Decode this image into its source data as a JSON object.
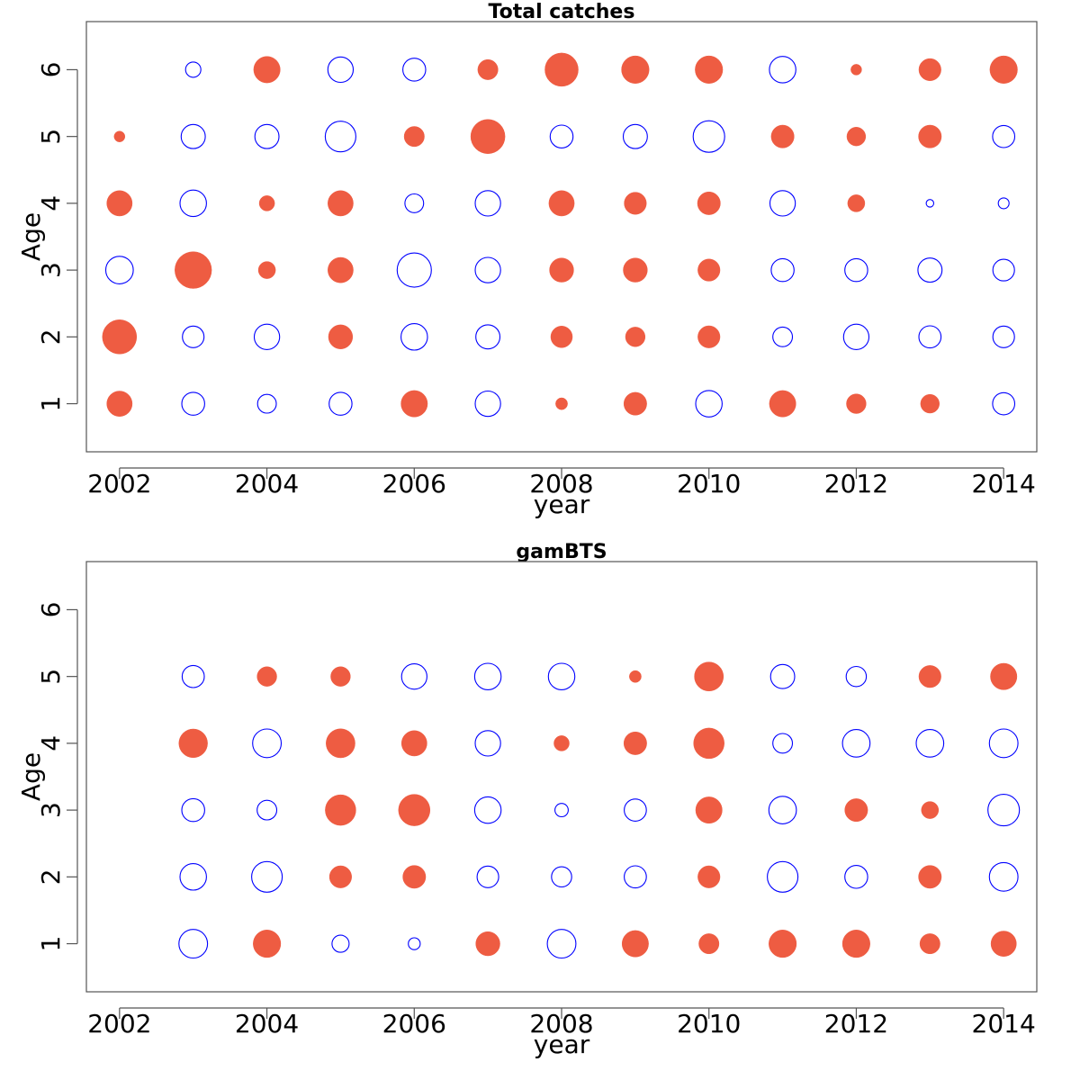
{
  "colors": {
    "positive": "#EE5C42",
    "negative": "#0000FF",
    "axis": "#555555"
  },
  "chart_data": [
    {
      "type": "scatter",
      "title": "Total catches",
      "xlabel": "year",
      "ylabel": "Age",
      "xlim": [
        2001.55,
        2014.45
      ],
      "ylim": [
        0.28,
        6.72
      ],
      "x_ticks": [
        2002,
        2004,
        2006,
        2008,
        2010,
        2012,
        2014
      ],
      "y_ticks": [
        1,
        2,
        3,
        4,
        5,
        6
      ],
      "grid": false,
      "legend": "none",
      "points": [
        {
          "x": 2002,
          "y": 1,
          "value": 0.55
        },
        {
          "x": 2002,
          "y": 2,
          "value": 1.0
        },
        {
          "x": 2002,
          "y": 3,
          "value": -0.65
        },
        {
          "x": 2002,
          "y": 4,
          "value": 0.55
        },
        {
          "x": 2002,
          "y": 5,
          "value": 0.1
        },
        {
          "x": 2003,
          "y": 1,
          "value": -0.45
        },
        {
          "x": 2003,
          "y": 2,
          "value": -0.4
        },
        {
          "x": 2003,
          "y": 3,
          "value": 1.15
        },
        {
          "x": 2003,
          "y": 4,
          "value": -0.6
        },
        {
          "x": 2003,
          "y": 5,
          "value": -0.5
        },
        {
          "x": 2003,
          "y": 6,
          "value": -0.2
        },
        {
          "x": 2004,
          "y": 1,
          "value": -0.3
        },
        {
          "x": 2004,
          "y": 2,
          "value": -0.55
        },
        {
          "x": 2004,
          "y": 3,
          "value": 0.25
        },
        {
          "x": 2004,
          "y": 4,
          "value": 0.2
        },
        {
          "x": 2004,
          "y": 5,
          "value": -0.5
        },
        {
          "x": 2004,
          "y": 6,
          "value": 0.6
        },
        {
          "x": 2005,
          "y": 1,
          "value": -0.45
        },
        {
          "x": 2005,
          "y": 2,
          "value": 0.5
        },
        {
          "x": 2005,
          "y": 3,
          "value": 0.55
        },
        {
          "x": 2005,
          "y": 4,
          "value": 0.55
        },
        {
          "x": 2005,
          "y": 5,
          "value": -0.8
        },
        {
          "x": 2005,
          "y": 6,
          "value": -0.55
        },
        {
          "x": 2006,
          "y": 1,
          "value": 0.6
        },
        {
          "x": 2006,
          "y": 2,
          "value": -0.6
        },
        {
          "x": 2006,
          "y": 3,
          "value": -1.0
        },
        {
          "x": 2006,
          "y": 4,
          "value": -0.3
        },
        {
          "x": 2006,
          "y": 5,
          "value": 0.35
        },
        {
          "x": 2006,
          "y": 6,
          "value": -0.45
        },
        {
          "x": 2007,
          "y": 1,
          "value": -0.55
        },
        {
          "x": 2007,
          "y": 2,
          "value": -0.5
        },
        {
          "x": 2007,
          "y": 3,
          "value": -0.55
        },
        {
          "x": 2007,
          "y": 4,
          "value": -0.55
        },
        {
          "x": 2007,
          "y": 5,
          "value": 1.0
        },
        {
          "x": 2007,
          "y": 6,
          "value": 0.35
        },
        {
          "x": 2008,
          "y": 1,
          "value": 0.12
        },
        {
          "x": 2008,
          "y": 2,
          "value": 0.4
        },
        {
          "x": 2008,
          "y": 3,
          "value": 0.5
        },
        {
          "x": 2008,
          "y": 4,
          "value": 0.55
        },
        {
          "x": 2008,
          "y": 5,
          "value": -0.45
        },
        {
          "x": 2008,
          "y": 6,
          "value": 0.95
        },
        {
          "x": 2009,
          "y": 1,
          "value": 0.45
        },
        {
          "x": 2009,
          "y": 2,
          "value": 0.33
        },
        {
          "x": 2009,
          "y": 3,
          "value": 0.5
        },
        {
          "x": 2009,
          "y": 4,
          "value": 0.42
        },
        {
          "x": 2009,
          "y": 5,
          "value": -0.5
        },
        {
          "x": 2009,
          "y": 6,
          "value": 0.65
        },
        {
          "x": 2010,
          "y": 1,
          "value": -0.6
        },
        {
          "x": 2010,
          "y": 2,
          "value": 0.42
        },
        {
          "x": 2010,
          "y": 3,
          "value": 0.42
        },
        {
          "x": 2010,
          "y": 4,
          "value": 0.45
        },
        {
          "x": 2010,
          "y": 5,
          "value": -0.85
        },
        {
          "x": 2010,
          "y": 6,
          "value": 0.65
        },
        {
          "x": 2011,
          "y": 1,
          "value": 0.6
        },
        {
          "x": 2011,
          "y": 2,
          "value": -0.33
        },
        {
          "x": 2011,
          "y": 3,
          "value": -0.45
        },
        {
          "x": 2011,
          "y": 4,
          "value": -0.55
        },
        {
          "x": 2011,
          "y": 5,
          "value": 0.45
        },
        {
          "x": 2011,
          "y": 6,
          "value": -0.6
        },
        {
          "x": 2012,
          "y": 1,
          "value": 0.33
        },
        {
          "x": 2012,
          "y": 2,
          "value": -0.55
        },
        {
          "x": 2012,
          "y": 3,
          "value": -0.45
        },
        {
          "x": 2012,
          "y": 4,
          "value": 0.25
        },
        {
          "x": 2012,
          "y": 5,
          "value": 0.3
        },
        {
          "x": 2012,
          "y": 6,
          "value": 0.1
        },
        {
          "x": 2013,
          "y": 1,
          "value": 0.3
        },
        {
          "x": 2013,
          "y": 2,
          "value": -0.42
        },
        {
          "x": 2013,
          "y": 3,
          "value": -0.5
        },
        {
          "x": 2013,
          "y": 4,
          "value": -0.05
        },
        {
          "x": 2013,
          "y": 5,
          "value": 0.45
        },
        {
          "x": 2013,
          "y": 6,
          "value": 0.42
        },
        {
          "x": 2014,
          "y": 1,
          "value": -0.42
        },
        {
          "x": 2014,
          "y": 2,
          "value": -0.4
        },
        {
          "x": 2014,
          "y": 3,
          "value": -0.4
        },
        {
          "x": 2014,
          "y": 4,
          "value": -0.1
        },
        {
          "x": 2014,
          "y": 5,
          "value": -0.42
        },
        {
          "x": 2014,
          "y": 6,
          "value": 0.65
        }
      ]
    },
    {
      "type": "scatter",
      "title": "gamBTS",
      "xlabel": "year",
      "ylabel": "Age",
      "xlim": [
        2001.55,
        2014.45
      ],
      "ylim": [
        0.28,
        6.72
      ],
      "x_ticks": [
        2002,
        2004,
        2006,
        2008,
        2010,
        2012,
        2014
      ],
      "y_ticks": [
        1,
        2,
        3,
        4,
        5,
        6
      ],
      "grid": false,
      "legend": "none",
      "points": [
        {
          "x": 2003,
          "y": 1,
          "value": -0.7
        },
        {
          "x": 2003,
          "y": 2,
          "value": -0.6
        },
        {
          "x": 2003,
          "y": 3,
          "value": -0.45
        },
        {
          "x": 2003,
          "y": 4,
          "value": 0.7
        },
        {
          "x": 2003,
          "y": 5,
          "value": -0.42
        },
        {
          "x": 2004,
          "y": 1,
          "value": 0.65
        },
        {
          "x": 2004,
          "y": 2,
          "value": -0.8
        },
        {
          "x": 2004,
          "y": 3,
          "value": -0.33
        },
        {
          "x": 2004,
          "y": 4,
          "value": -0.7
        },
        {
          "x": 2004,
          "y": 5,
          "value": 0.33
        },
        {
          "x": 2005,
          "y": 1,
          "value": -0.25
        },
        {
          "x": 2005,
          "y": 2,
          "value": 0.42
        },
        {
          "x": 2005,
          "y": 3,
          "value": 0.8
        },
        {
          "x": 2005,
          "y": 4,
          "value": 0.72
        },
        {
          "x": 2005,
          "y": 5,
          "value": 0.33
        },
        {
          "x": 2006,
          "y": 1,
          "value": -0.12
        },
        {
          "x": 2006,
          "y": 2,
          "value": 0.45
        },
        {
          "x": 2006,
          "y": 3,
          "value": 0.85
        },
        {
          "x": 2006,
          "y": 4,
          "value": 0.55
        },
        {
          "x": 2006,
          "y": 5,
          "value": -0.55
        },
        {
          "x": 2007,
          "y": 1,
          "value": 0.5
        },
        {
          "x": 2007,
          "y": 2,
          "value": -0.4
        },
        {
          "x": 2007,
          "y": 3,
          "value": -0.6
        },
        {
          "x": 2007,
          "y": 4,
          "value": -0.55
        },
        {
          "x": 2007,
          "y": 5,
          "value": -0.6
        },
        {
          "x": 2008,
          "y": 1,
          "value": -0.7
        },
        {
          "x": 2008,
          "y": 2,
          "value": -0.35
        },
        {
          "x": 2008,
          "y": 3,
          "value": -0.15
        },
        {
          "x": 2008,
          "y": 4,
          "value": 0.2
        },
        {
          "x": 2008,
          "y": 5,
          "value": -0.6
        },
        {
          "x": 2009,
          "y": 1,
          "value": 0.6
        },
        {
          "x": 2009,
          "y": 2,
          "value": -0.42
        },
        {
          "x": 2009,
          "y": 3,
          "value": -0.42
        },
        {
          "x": 2009,
          "y": 4,
          "value": 0.45
        },
        {
          "x": 2009,
          "y": 5,
          "value": 0.12
        },
        {
          "x": 2010,
          "y": 1,
          "value": 0.35
        },
        {
          "x": 2010,
          "y": 2,
          "value": 0.42
        },
        {
          "x": 2010,
          "y": 3,
          "value": 0.6
        },
        {
          "x": 2010,
          "y": 4,
          "value": 0.8
        },
        {
          "x": 2010,
          "y": 5,
          "value": 0.72
        },
        {
          "x": 2011,
          "y": 1,
          "value": 0.65
        },
        {
          "x": 2011,
          "y": 2,
          "value": -0.8
        },
        {
          "x": 2011,
          "y": 3,
          "value": -0.65
        },
        {
          "x": 2011,
          "y": 4,
          "value": -0.33
        },
        {
          "x": 2011,
          "y": 5,
          "value": -0.5
        },
        {
          "x": 2012,
          "y": 1,
          "value": 0.65
        },
        {
          "x": 2012,
          "y": 2,
          "value": -0.45
        },
        {
          "x": 2012,
          "y": 3,
          "value": 0.45
        },
        {
          "x": 2012,
          "y": 4,
          "value": -0.65
        },
        {
          "x": 2012,
          "y": 5,
          "value": -0.35
        },
        {
          "x": 2013,
          "y": 1,
          "value": 0.35
        },
        {
          "x": 2013,
          "y": 2,
          "value": 0.45
        },
        {
          "x": 2013,
          "y": 3,
          "value": 0.25
        },
        {
          "x": 2013,
          "y": 4,
          "value": -0.65
        },
        {
          "x": 2013,
          "y": 5,
          "value": 0.42
        },
        {
          "x": 2014,
          "y": 1,
          "value": 0.55
        },
        {
          "x": 2014,
          "y": 2,
          "value": -0.7
        },
        {
          "x": 2014,
          "y": 3,
          "value": -0.85
        },
        {
          "x": 2014,
          "y": 4,
          "value": -0.7
        },
        {
          "x": 2014,
          "y": 5,
          "value": 0.6
        }
      ]
    }
  ]
}
